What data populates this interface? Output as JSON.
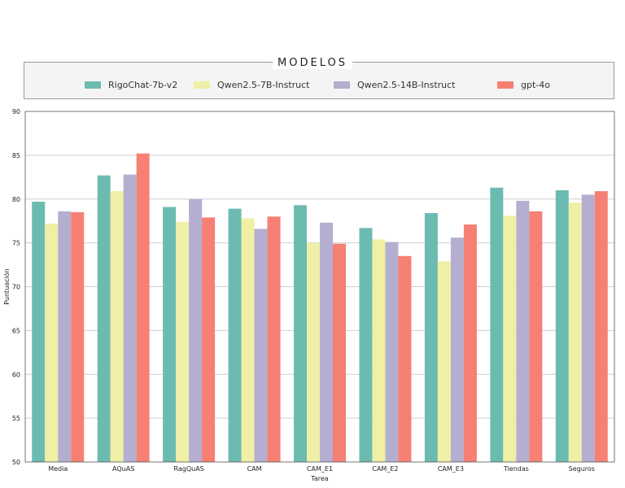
{
  "legend": {
    "title": "MODELOS",
    "placement": "top"
  },
  "chart_data": {
    "type": "bar",
    "title": "",
    "xlabel": "Tarea",
    "ylabel": "Puntuación",
    "ylim": [
      50,
      90
    ],
    "yticks": [
      50,
      55,
      60,
      65,
      70,
      75,
      80,
      85,
      90
    ],
    "grid": true,
    "categories": [
      "Media",
      "AQuAS",
      "RagQuAS",
      "CAM",
      "CAM_E1",
      "CAM_E2",
      "CAM_E3",
      "Tiendas",
      "Seguros"
    ],
    "series": [
      {
        "name": "RigoChat-7b-v2",
        "color": "#6cbbb0",
        "values": [
          79.7,
          82.7,
          79.1,
          78.9,
          79.3,
          76.7,
          78.4,
          81.3,
          81.0
        ]
      },
      {
        "name": "Qwen2.5-7B-Instruct",
        "color": "#efefa6",
        "values": [
          77.2,
          80.9,
          77.4,
          77.8,
          75.0,
          75.4,
          72.9,
          78.1,
          79.6
        ]
      },
      {
        "name": "Qwen2.5-14B-Instruct",
        "color": "#b4aed0",
        "values": [
          78.6,
          82.8,
          80.0,
          76.6,
          77.3,
          75.1,
          75.6,
          79.8,
          80.5
        ]
      },
      {
        "name": "gpt-4o",
        "color": "#f58073",
        "values": [
          78.5,
          85.2,
          77.9,
          78.0,
          74.9,
          73.5,
          77.1,
          78.6,
          80.9
        ]
      }
    ]
  }
}
